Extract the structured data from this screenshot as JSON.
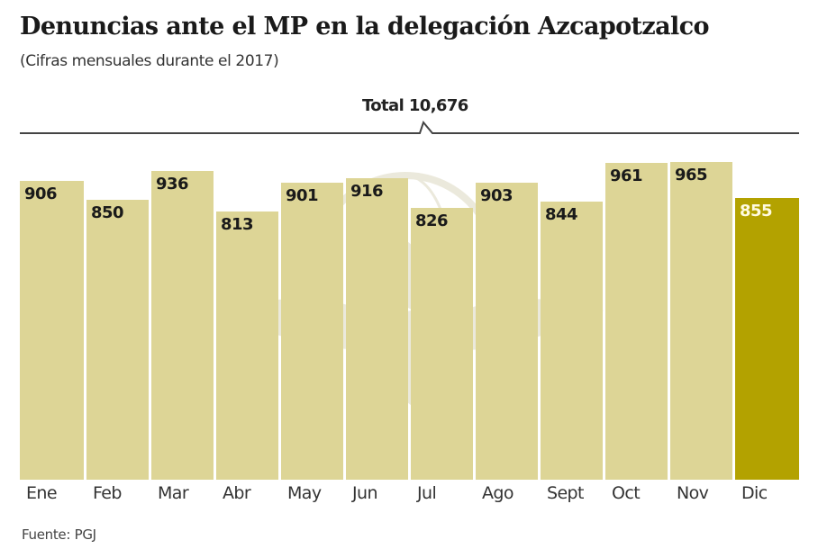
{
  "header": {
    "title": "Denuncias ante el MP en la delegación Azcapotzalco",
    "subtitle": "(Cifras mensuales durante el 2017)",
    "total_label": "Total 10,676"
  },
  "footer": {
    "source": "Fuente: PGJ"
  },
  "colors": {
    "bar": "#ddd596",
    "highlight_bar": "#b3a200",
    "highlight_text": "#fffbe0"
  },
  "bars": [
    {
      "month": "Ene",
      "value": "906"
    },
    {
      "month": "Feb",
      "value": "850"
    },
    {
      "month": "Mar",
      "value": "936"
    },
    {
      "month": "Abr",
      "value": "813"
    },
    {
      "month": "May",
      "value": "901"
    },
    {
      "month": "Jun",
      "value": "916"
    },
    {
      "month": "Jul",
      "value": "826"
    },
    {
      "month": "Ago",
      "value": "903"
    },
    {
      "month": "Sept",
      "value": "844"
    },
    {
      "month": "Oct",
      "value": "961"
    },
    {
      "month": "Nov",
      "value": "965"
    },
    {
      "month": "Dic",
      "value": "855"
    }
  ],
  "chart_data": {
    "type": "bar",
    "title": "Denuncias ante el MP en la delegación Azcapotzalco",
    "subtitle": "(Cifras mensuales durante el 2017)",
    "annotation": "Total 10,676",
    "categories": [
      "Ene",
      "Feb",
      "Mar",
      "Abr",
      "May",
      "Jun",
      "Jul",
      "Ago",
      "Sept",
      "Oct",
      "Nov",
      "Dic"
    ],
    "values": [
      906,
      850,
      936,
      813,
      901,
      916,
      826,
      903,
      844,
      961,
      965,
      855
    ],
    "highlighted": [
      "Dic"
    ],
    "xlabel": "",
    "ylabel": "",
    "ylim": [
      0,
      965
    ],
    "grid": false,
    "legend": null,
    "source": "Fuente: PGJ"
  }
}
